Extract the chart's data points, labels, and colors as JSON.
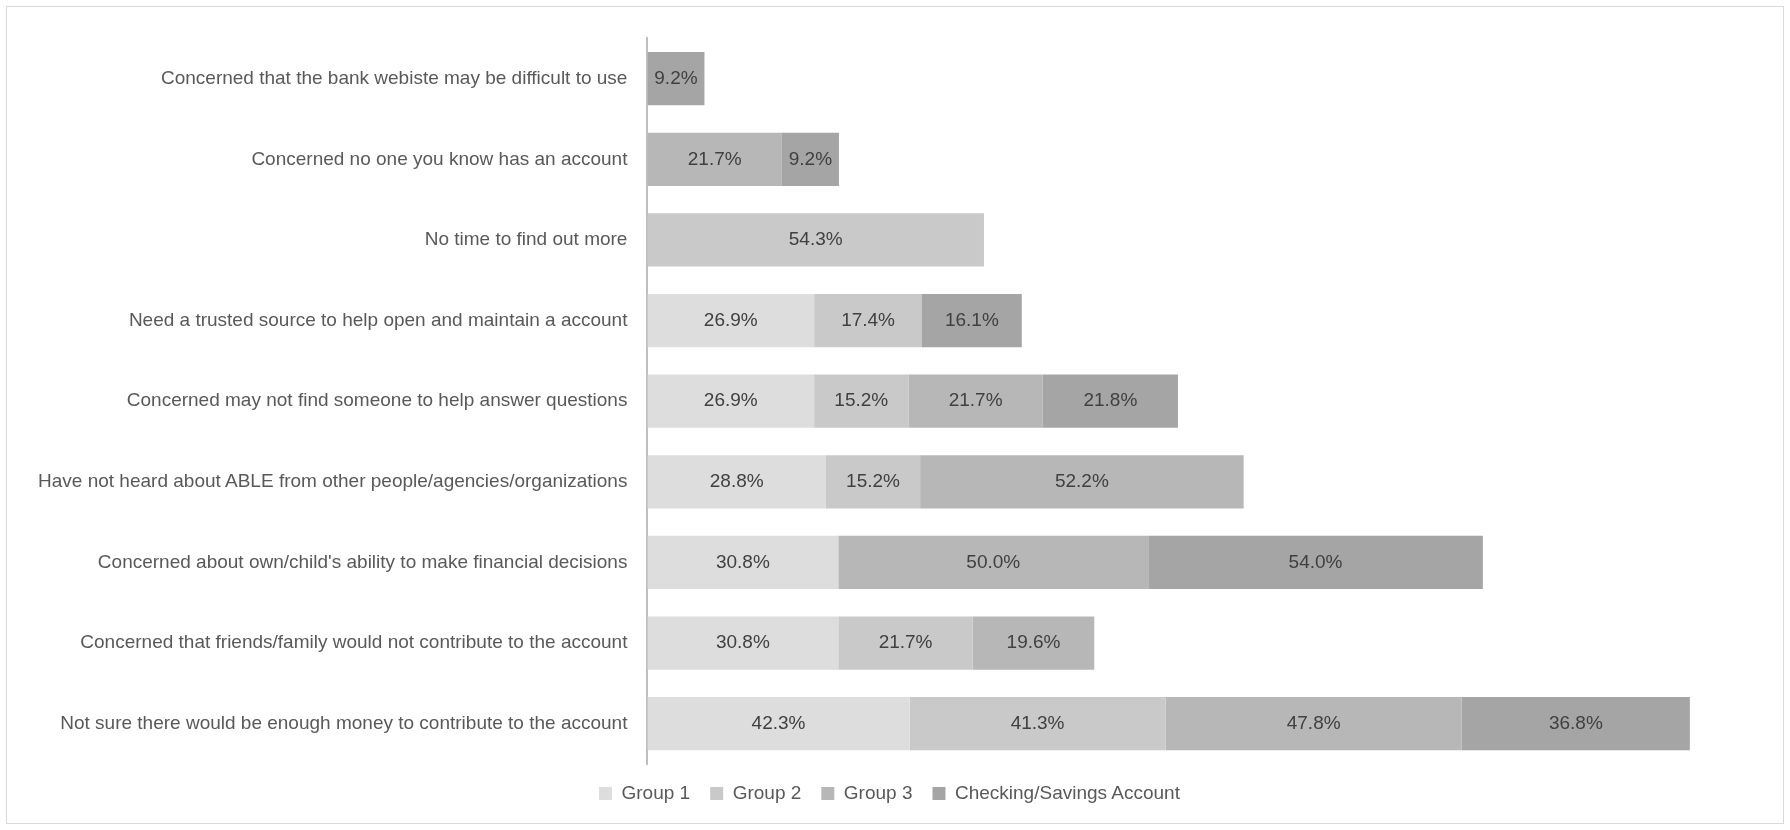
{
  "chart_data": {
    "type": "bar",
    "orientation": "horizontal",
    "stacked": true,
    "tick_labels": "y",
    "legend": "bottom",
    "categories": [
      "Concerned that the bank webiste may be difficult to use",
      "Concerned no one you know has an account",
      "No time to find out more",
      "Need a trusted source to help open and maintain a account",
      "Concerned may not find someone to help answer questions",
      "Have not heard about ABLE from other people/agencies/organizations",
      "Concerned about own/child's ability to make financial decisions",
      "Concerned that friends/family would not contribute to the account",
      "Not sure there would be enough money to contribute to the account"
    ],
    "series": [
      {
        "name": "Group 1",
        "color": "#dddddd",
        "values": [
          null,
          null,
          null,
          26.9,
          26.9,
          28.8,
          30.8,
          30.8,
          42.3
        ],
        "value_labels": [
          null,
          null,
          null,
          "26.9%",
          "26.9%",
          "28.8%",
          "30.8%",
          "30.8%",
          "42.3%"
        ]
      },
      {
        "name": "Group 2",
        "color": "#c9c9c9",
        "values": [
          null,
          null,
          54.3,
          17.4,
          15.2,
          15.2,
          null,
          21.7,
          41.3
        ],
        "value_labels": [
          null,
          null,
          "54.3%",
          "17.4%",
          "15.2%",
          "15.2%",
          null,
          "21.7%",
          "41.3%"
        ]
      },
      {
        "name": "Group 3",
        "color": "#b7b7b7",
        "values": [
          null,
          21.7,
          null,
          null,
          21.7,
          52.2,
          50.0,
          19.6,
          47.8
        ],
        "value_labels": [
          null,
          "21.7%",
          null,
          null,
          "21.7%",
          "52.2%",
          "50.0%",
          "19.6%",
          "47.8%"
        ]
      },
      {
        "name": "Checking/Savings Account",
        "color": "#a5a5a5",
        "values": [
          9.2,
          9.2,
          null,
          16.1,
          21.8,
          null,
          54.0,
          null,
          36.8
        ],
        "value_labels": [
          "9.2%",
          "9.2%",
          null,
          "16.1%",
          "21.8%",
          null,
          "54.0%",
          null,
          "36.8%"
        ]
      }
    ]
  }
}
